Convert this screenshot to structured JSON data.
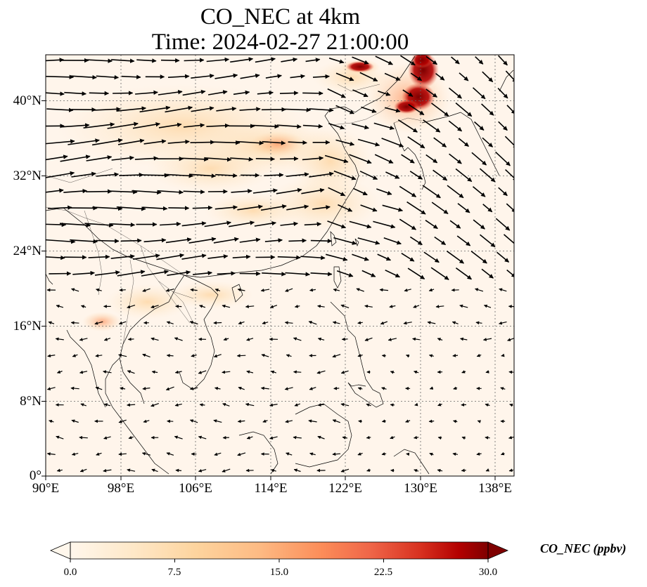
{
  "title": {
    "line1": "CO_NEC at 4km",
    "line2": "Time: 2024-02-27 21:00:00"
  },
  "map": {
    "lat_ticks": [
      "40°N",
      "32°N",
      "24°N",
      "16°N",
      "8°N",
      "0°"
    ],
    "lon_ticks": [
      "90°E",
      "98°E",
      "106°E",
      "114°E",
      "122°E",
      "130°E",
      "138°E"
    ],
    "lat_range": [
      0,
      44.8
    ],
    "lon_range": [
      90,
      140
    ],
    "gridlines": true,
    "overlay": "wind vectors",
    "hotspot_color": "#7f0000",
    "background_color": "#fff5eb"
  },
  "colorbar": {
    "label": "CO_NEC (ppbv)",
    "ticks": [
      "0.0",
      "7.5",
      "15.0",
      "22.5",
      "30.0"
    ],
    "range": [
      0,
      30
    ],
    "colormap": "OrRd",
    "extend": "both"
  }
}
